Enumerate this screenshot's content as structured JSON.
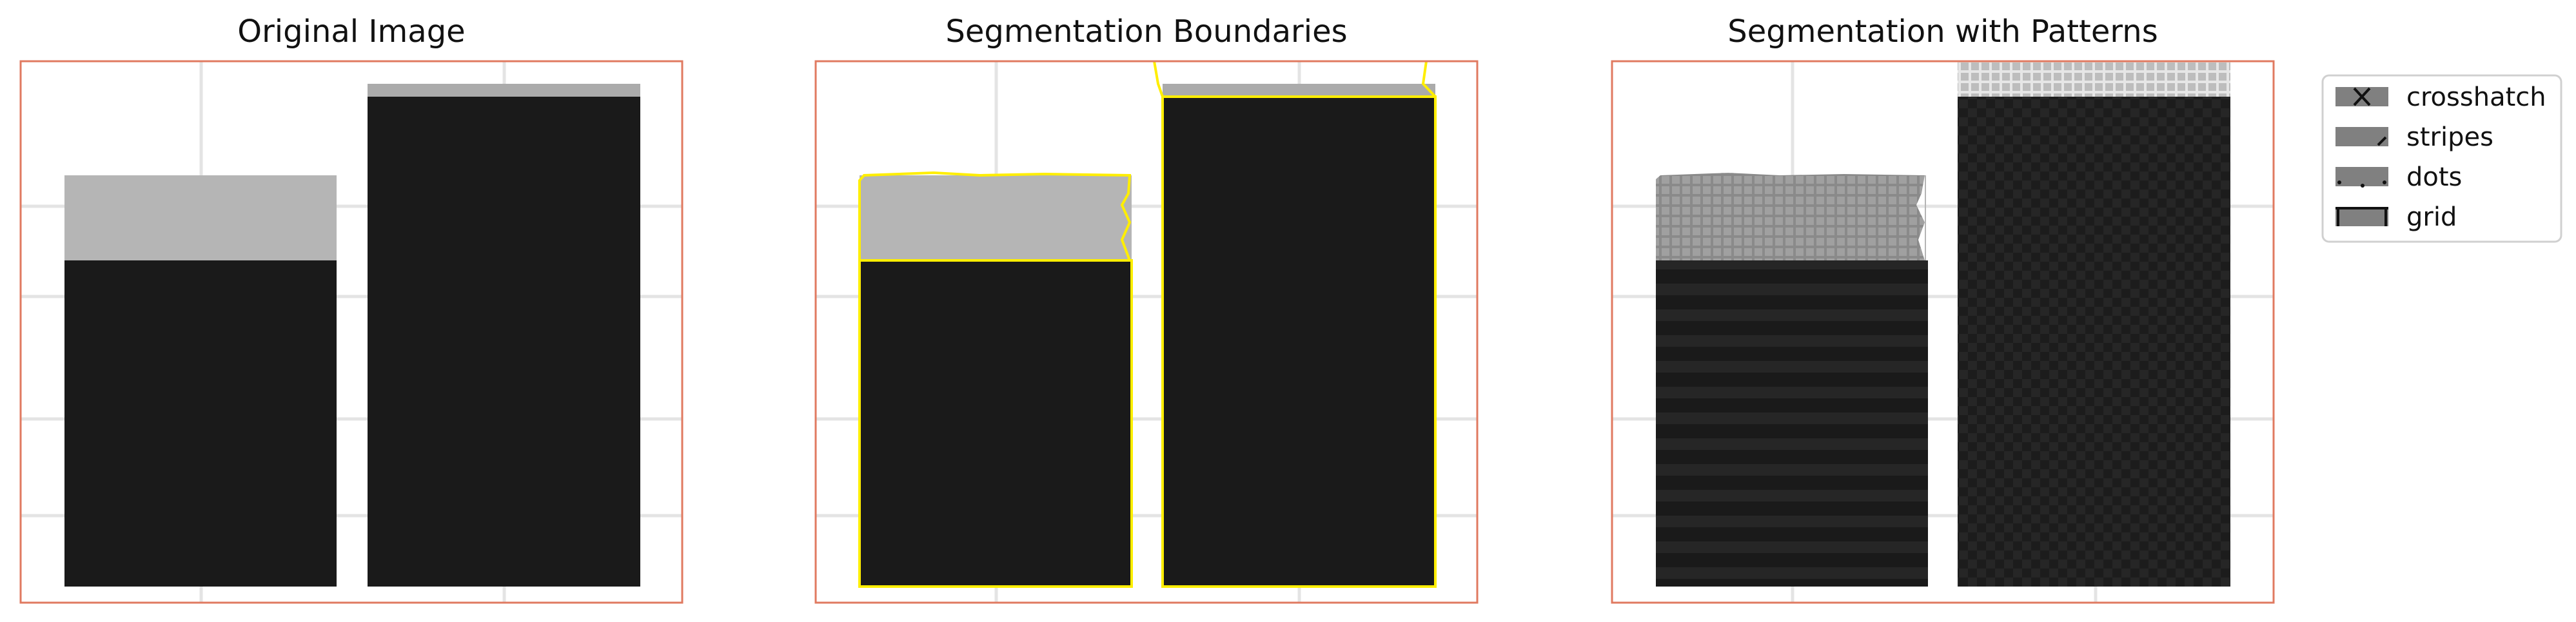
{
  "panels": [
    {
      "title": "Original Image"
    },
    {
      "title": "Segmentation Boundaries"
    },
    {
      "title": "Segmentation with Patterns"
    }
  ],
  "legend": {
    "items": [
      {
        "label": "crosshatch",
        "symbol": "x-mark"
      },
      {
        "label": "stripes",
        "symbol": "slash-mark"
      },
      {
        "label": "dots",
        "symbol": "dots-mark"
      },
      {
        "label": "grid",
        "symbol": "grid-mark"
      }
    ]
  },
  "colors": {
    "frame": "#e07a60",
    "gridline": "#e4e4e4",
    "bar_dark": "#1a1a1a",
    "bar_light": "#b5b5b5",
    "boundary": "#ffee00",
    "legend_swatch": "#808080"
  }
}
